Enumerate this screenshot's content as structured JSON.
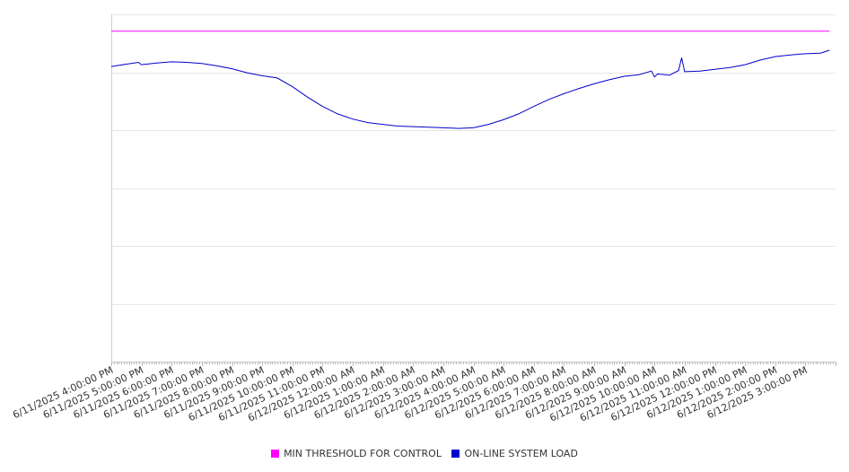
{
  "chart_data": {
    "type": "line",
    "title": "",
    "xlabel": "",
    "ylabel": "",
    "ylim": [
      0,
      600
    ],
    "grid": true,
    "legend_placement": "bottom-center",
    "x_tick_labels": [
      "6/11/2025 4:00:00 PM",
      "6/11/2025 5:00:00 PM",
      "6/11/2025 6:00:00 PM",
      "6/11/2025 7:00:00 PM",
      "6/11/2025 8:00:00 PM",
      "6/11/2025 9:00:00 PM",
      "6/11/2025 10:00:00 PM",
      "6/11/2025 11:00:00 PM",
      "6/12/2025 12:00:00 AM",
      "6/12/2025 1:00:00 AM",
      "6/12/2025 2:00:00 AM",
      "6/12/2025 3:00:00 AM",
      "6/12/2025 4:00:00 AM",
      "6/12/2025 5:00:00 AM",
      "6/12/2025 6:00:00 AM",
      "6/12/2025 7:00:00 AM",
      "6/12/2025 8:00:00 AM",
      "6/12/2025 9:00:00 AM",
      "6/12/2025 10:00:00 AM",
      "6/12/2025 11:00:00 AM",
      "6/12/2025 12:00:00 PM",
      "6/12/2025 1:00:00 PM",
      "6/12/2025 2:00:00 PM",
      "6/12/2025 3:00:00 PM"
    ],
    "x_hours": [
      0,
      0.5,
      0.9,
      1,
      1.5,
      2,
      2.5,
      3,
      3.5,
      4,
      4.5,
      5,
      5.5,
      6,
      6.5,
      7,
      7.5,
      8,
      8.5,
      9,
      9.5,
      10,
      10.5,
      11,
      11.5,
      12,
      12.5,
      13,
      13.5,
      14,
      14.5,
      15,
      15.5,
      16,
      16.5,
      17,
      17.5,
      17.9,
      18,
      18.1,
      18.5,
      18.8,
      18.9,
      19,
      19.5,
      20,
      20.5,
      21,
      21.5,
      22,
      22.5,
      23,
      23.5,
      23.8
    ],
    "series": [
      {
        "name": "MIN THRESHOLD FOR CONTROL",
        "color": "#ff00ff",
        "values": [
          571,
          571,
          571,
          571,
          571,
          571,
          571,
          571,
          571,
          571,
          571,
          571,
          571,
          571,
          571,
          571,
          571,
          571,
          571,
          571,
          571,
          571,
          571,
          571,
          571,
          571,
          571,
          571,
          571,
          571,
          571,
          571,
          571,
          571,
          571,
          571,
          571,
          571,
          571,
          571,
          571,
          571,
          571,
          571,
          571,
          571,
          571,
          571,
          571,
          571,
          571,
          571,
          571,
          571
        ]
      },
      {
        "name": "ON-LINE SYSTEM LOAD",
        "color": "#0000cc",
        "values": [
          510,
          514,
          517,
          513,
          516,
          518,
          517,
          515,
          511,
          506,
          499,
          494,
          490,
          475,
          457,
          441,
          428,
          419,
          413,
          410,
          407,
          406,
          405,
          404,
          403,
          404,
          410,
          418,
          428,
          441,
          453,
          463,
          472,
          480,
          487,
          493,
          496,
          502,
          492,
          497,
          495,
          503,
          525,
          501,
          502,
          505,
          508,
          513,
          521,
          527,
          530,
          532,
          533,
          538
        ]
      }
    ]
  }
}
